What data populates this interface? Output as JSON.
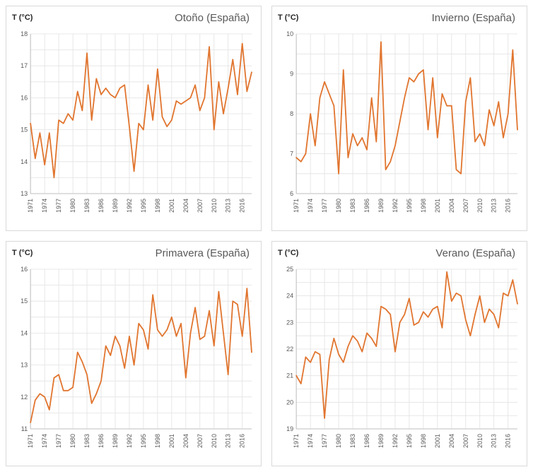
{
  "style": {
    "line_color": "#e1752f",
    "grid_color": "#e2e2e2",
    "axis_color": "#bfbfbf",
    "tick_label_color": "#595959",
    "title_color": "#595959",
    "card_border_color": "#d9d9d9",
    "background_color": "#ffffff"
  },
  "chart_data": [
    {
      "type": "line",
      "title": "Otoño (España)",
      "ylabel": "T (°C)",
      "x_first_year": 1971,
      "x_last_year": 2018,
      "x_step": 1,
      "ylim": [
        13,
        18
      ],
      "y_tick_step": 1,
      "y_minor_step": 0.5,
      "grid": true,
      "legend": "none",
      "x_tick_labels": [
        "1971",
        "1974",
        "1977",
        "1980",
        "1983",
        "1986",
        "1989",
        "1992",
        "1995",
        "1998",
        "2001",
        "2004",
        "2007",
        "2010",
        "2013",
        "2016"
      ],
      "series": [
        {
          "values": [
            15.2,
            14.1,
            14.9,
            13.9,
            14.9,
            13.5,
            15.3,
            15.2,
            15.5,
            15.3,
            16.2,
            15.6,
            17.4,
            15.3,
            16.6,
            16.1,
            16.3,
            16.1,
            16.0,
            16.3,
            16.4,
            15.1,
            13.7,
            15.2,
            15.0,
            16.4,
            15.3,
            16.9,
            15.4,
            15.1,
            15.3,
            15.9,
            15.8,
            15.9,
            16.0,
            16.4,
            15.6,
            16.0,
            17.6,
            15.0,
            16.5,
            15.5,
            16.3,
            17.2,
            16.1,
            17.7,
            16.2,
            16.8
          ]
        }
      ]
    },
    {
      "type": "line",
      "title": "Invierno (España)",
      "ylabel": "T (°C)",
      "x_first_year": 1971,
      "x_last_year": 2018,
      "x_step": 1,
      "ylim": [
        6,
        10
      ],
      "y_tick_step": 1,
      "y_minor_step": 0.5,
      "grid": true,
      "legend": "none",
      "x_tick_labels": [
        "1971",
        "1974",
        "1977",
        "1980",
        "1983",
        "1986",
        "1989",
        "1992",
        "1995",
        "1998",
        "2001",
        "2004",
        "2007",
        "2010",
        "2013",
        "2016"
      ],
      "series": [
        {
          "values": [
            6.9,
            6.8,
            7.0,
            8.0,
            7.2,
            8.4,
            8.8,
            8.5,
            8.2,
            6.5,
            9.1,
            6.9,
            7.5,
            7.2,
            7.4,
            7.1,
            8.4,
            7.3,
            9.8,
            6.6,
            6.8,
            7.2,
            7.8,
            8.4,
            8.9,
            8.8,
            9.0,
            9.1,
            7.6,
            8.9,
            7.4,
            8.5,
            8.2,
            8.2,
            6.6,
            6.5,
            8.3,
            8.9,
            7.3,
            7.5,
            7.2,
            8.1,
            7.7,
            8.3,
            7.4,
            8.0,
            9.6,
            7.6
          ]
        }
      ]
    },
    {
      "type": "line",
      "title": "Primavera (España)",
      "ylabel": "T (°C)",
      "x_first_year": 1971,
      "x_last_year": 2018,
      "x_step": 1,
      "ylim": [
        11,
        16
      ],
      "y_tick_step": 1,
      "y_minor_step": 0.5,
      "grid": true,
      "legend": "none",
      "x_tick_labels": [
        "1971",
        "1974",
        "1977",
        "1980",
        "1983",
        "1986",
        "1989",
        "1992",
        "1995",
        "1998",
        "2001",
        "2004",
        "2007",
        "2010",
        "2013",
        "2016"
      ],
      "series": [
        {
          "values": [
            11.2,
            11.9,
            12.1,
            12.0,
            11.6,
            12.6,
            12.7,
            12.2,
            12.2,
            12.3,
            13.4,
            13.1,
            12.7,
            11.8,
            12.1,
            12.5,
            13.6,
            13.3,
            13.9,
            13.6,
            12.9,
            13.9,
            13.0,
            14.3,
            14.1,
            13.5,
            15.2,
            14.1,
            13.9,
            14.1,
            14.5,
            13.9,
            14.3,
            12.6,
            14.0,
            14.8,
            13.8,
            13.9,
            14.7,
            13.6,
            15.3,
            14.0,
            12.7,
            15.0,
            14.9,
            13.9,
            15.4,
            13.4
          ]
        }
      ]
    },
    {
      "type": "line",
      "title": "Verano (España)",
      "ylabel": "T (°C)",
      "x_first_year": 1971,
      "x_last_year": 2018,
      "x_step": 1,
      "ylim": [
        19,
        25
      ],
      "y_tick_step": 1,
      "y_minor_step": 0.5,
      "grid": true,
      "legend": "none",
      "x_tick_labels": [
        "1971",
        "1974",
        "1977",
        "1980",
        "1983",
        "1986",
        "1989",
        "1992",
        "1995",
        "1998",
        "2001",
        "2004",
        "2007",
        "2010",
        "2013",
        "2016"
      ],
      "series": [
        {
          "values": [
            21.0,
            20.7,
            21.7,
            21.5,
            21.9,
            21.8,
            19.4,
            21.6,
            22.4,
            21.8,
            21.5,
            22.1,
            22.5,
            22.3,
            21.9,
            22.6,
            22.4,
            22.1,
            23.6,
            23.5,
            23.3,
            21.9,
            23.0,
            23.3,
            23.9,
            22.9,
            23.0,
            23.4,
            23.2,
            23.5,
            23.6,
            22.8,
            24.9,
            23.8,
            24.1,
            24.0,
            23.1,
            22.5,
            23.3,
            24.0,
            23.0,
            23.5,
            23.3,
            22.8,
            24.1,
            24.0,
            24.6,
            23.7
          ]
        }
      ]
    }
  ]
}
